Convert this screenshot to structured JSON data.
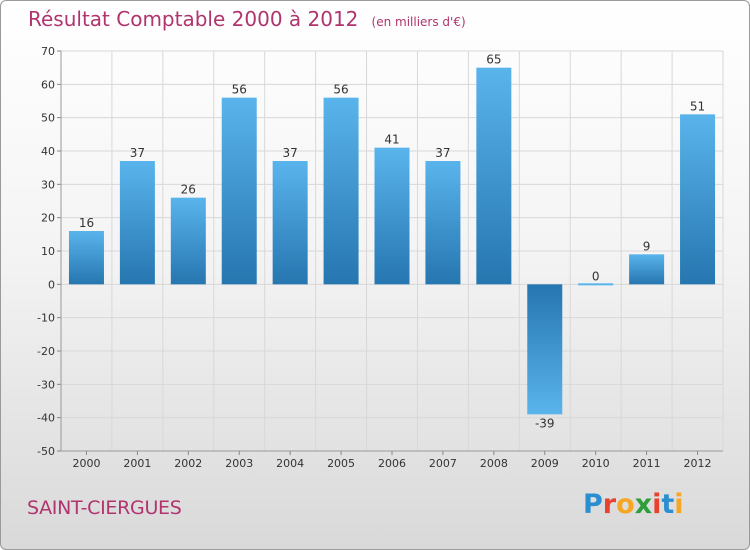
{
  "chart_data": {
    "type": "bar",
    "title": "Résultat Comptable 2000 à 2012",
    "unit_note": "(en milliers d'€)",
    "categories": [
      "2000",
      "2001",
      "2002",
      "2003",
      "2004",
      "2005",
      "2006",
      "2007",
      "2008",
      "2009",
      "2010",
      "2011",
      "2012"
    ],
    "values": [
      16,
      37,
      26,
      56,
      37,
      56,
      41,
      37,
      65,
      -39,
      0,
      9,
      51
    ],
    "value_labels": [
      "16",
      "37",
      "26",
      "56",
      "37",
      "56",
      "41",
      "37",
      "65",
      "-39",
      "0",
      "9",
      "51"
    ],
    "ylim": [
      -50,
      70
    ],
    "yticks": [
      70,
      60,
      50,
      40,
      30,
      20,
      10,
      0,
      -10,
      -20,
      -30,
      -40,
      -50
    ],
    "grid": true,
    "bar_color_light": "#5ab4ec",
    "bar_color_dark": "#2676b0",
    "grid_color": "#d8d8d8"
  },
  "footer": {
    "commune": "SAINT-CIERGUES",
    "logo_text": "Proxiti",
    "logo_letters": [
      {
        "ch": "P",
        "color": "#2a8fd0"
      },
      {
        "ch": "r",
        "color": "#e8432f"
      },
      {
        "ch": "o",
        "color": "#f5a623"
      },
      {
        "ch": "x",
        "color": "#2e9e3a"
      },
      {
        "ch": "i",
        "color": "#e8432f"
      },
      {
        "ch": "t",
        "color": "#2a8fd0"
      },
      {
        "ch": "i",
        "color": "#f5a623"
      }
    ]
  },
  "colors": {
    "title": "#b0346e",
    "text": "#333333"
  }
}
